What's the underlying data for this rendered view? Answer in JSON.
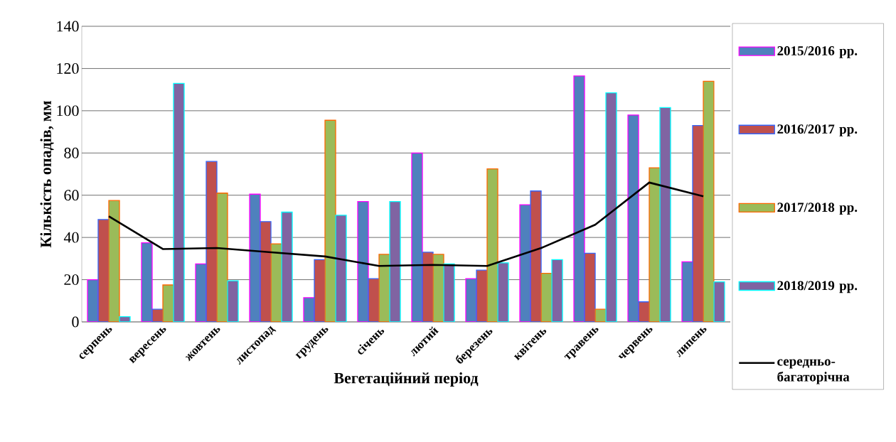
{
  "chart_data": {
    "type": "bar",
    "xlabel": "Вегетаційний період",
    "ylabel": "Кількість опадів, мм",
    "categories": [
      "серпень",
      "вересень",
      "жовтень",
      "листопад",
      "грудень",
      "січень",
      "лютий",
      "березень",
      "квітень",
      "травень",
      "червень",
      "липень"
    ],
    "series": [
      {
        "name": "2015/2016 рр.",
        "color": "#4f81bd",
        "values": [
          20,
          37.5,
          27.5,
          60.5,
          11.5,
          57,
          80,
          20.5,
          55.5,
          116.5,
          98,
          28.5
        ]
      },
      {
        "name": "2016/2017 рр.",
        "color": "#c0504d",
        "values": [
          48.5,
          6,
          76,
          47.5,
          29.5,
          20.5,
          33,
          24.5,
          62,
          32.5,
          9.5,
          93
        ]
      },
      {
        "name": "2017/2018 рр.",
        "color": "#9bbb59",
        "values": [
          57.5,
          17.5,
          61,
          37,
          95.5,
          32,
          32,
          72.5,
          23,
          6,
          73,
          114
        ]
      },
      {
        "name": "2018/2019 рр.",
        "color": "#8064a2",
        "values": [
          2.5,
          113,
          19.5,
          52,
          50.5,
          57,
          27.5,
          28,
          29.5,
          108.5,
          101.5,
          19
        ]
      },
      {
        "name": "середньо-багаторічна",
        "type": "line",
        "color": "#000000",
        "values": [
          50,
          34.5,
          35,
          33,
          31,
          26.5,
          27,
          26.5,
          35,
          46,
          66,
          59.5
        ]
      }
    ],
    "ylim": [
      0,
      140
    ],
    "yticks": [
      0,
      20,
      40,
      60,
      80,
      100,
      120,
      140
    ],
    "grid": "y",
    "legend": "right"
  }
}
